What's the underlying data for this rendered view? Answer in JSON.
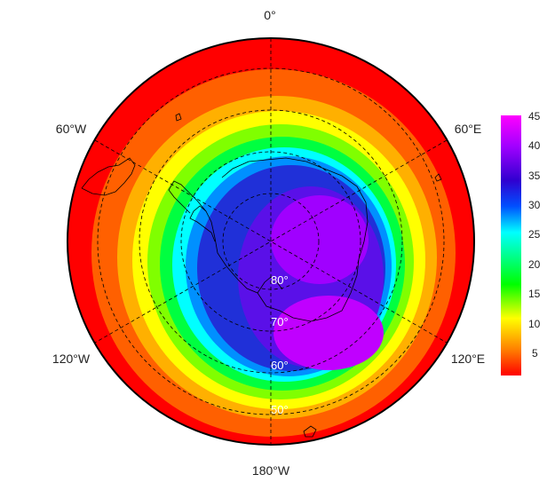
{
  "map": {
    "longitude_labels": {
      "top": "0°",
      "upper_left": "60°W",
      "upper_right": "60°E",
      "lower_left": "120°W",
      "lower_right": "120°E",
      "bottom": "180°W"
    },
    "latitude_labels": [
      "80°",
      "70°",
      "60°",
      "50°"
    ],
    "hole_color_stops": [
      "#ff0000",
      "#ff7a00",
      "#ffff00",
      "#00ff00",
      "#00ffff",
      "#0060ff",
      "#1a00c8",
      "#a000ff",
      "#ff00ff"
    ]
  },
  "colorbar": {
    "ticks": [
      "45",
      "40",
      "35",
      "30",
      "25",
      "20",
      "15",
      "10",
      "5"
    ],
    "colors": [
      "#ff00ff",
      "#a000ff",
      "#3000d0",
      "#0050ff",
      "#00ffff",
      "#00ff80",
      "#00ff00",
      "#ffff00",
      "#ff8000",
      "#ff0000"
    ]
  }
}
